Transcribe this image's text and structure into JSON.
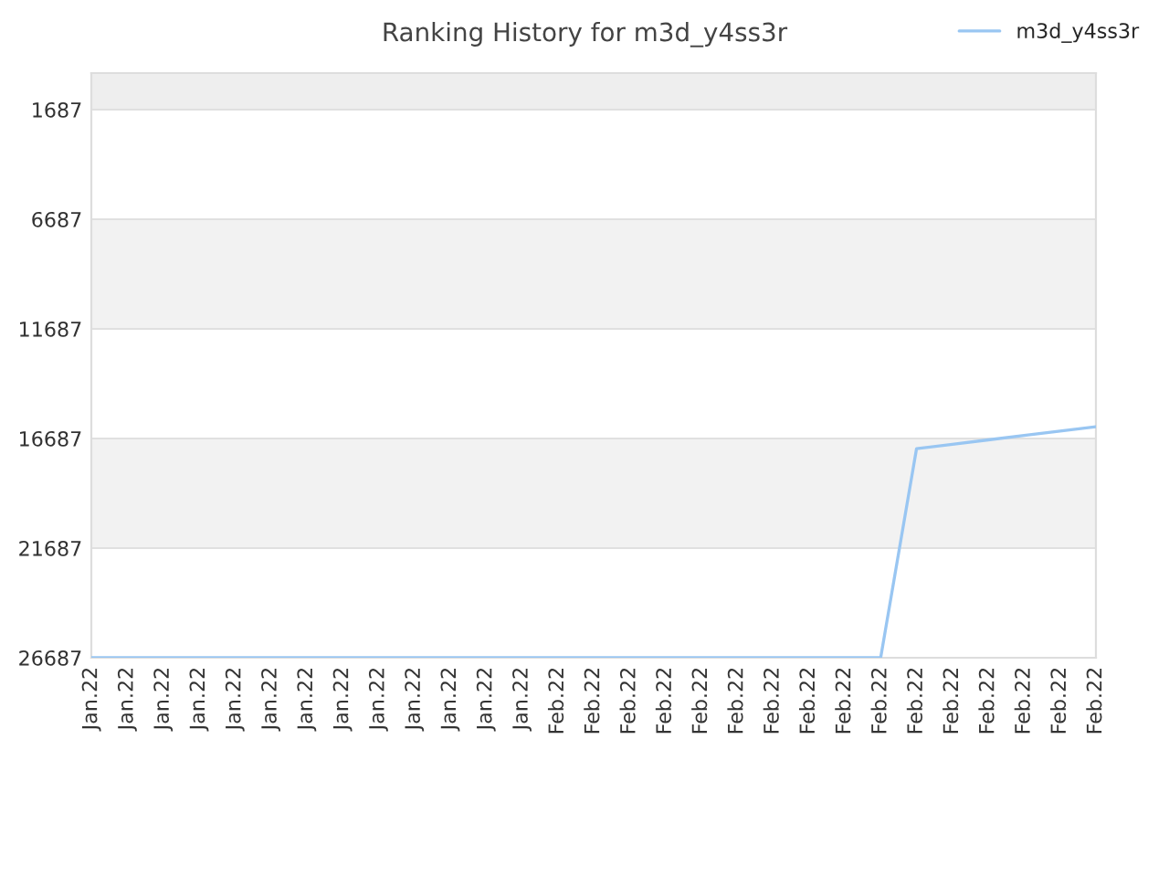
{
  "chart_data": {
    "type": "line",
    "title": "Ranking History for m3d_y4ss3r",
    "categories": [
      "Jan.22",
      "Jan.22",
      "Jan.22",
      "Jan.22",
      "Jan.22",
      "Jan.22",
      "Jan.22",
      "Jan.22",
      "Jan.22",
      "Jan.22",
      "Jan.22",
      "Jan.22",
      "Jan.22",
      "Feb.22",
      "Feb.22",
      "Feb.22",
      "Feb.22",
      "Feb.22",
      "Feb.22",
      "Feb.22",
      "Feb.22",
      "Feb.22",
      "Feb.22",
      "Feb.22",
      "Feb.22",
      "Feb.22",
      "Feb.22",
      "Feb.22",
      "Feb.22"
    ],
    "series": [
      {
        "name": "m3d_y4ss3r",
        "color": "#99c6f2",
        "values": [
          26687,
          26687,
          26687,
          26687,
          26687,
          26687,
          26687,
          26687,
          26687,
          26687,
          26687,
          26687,
          26687,
          26687,
          26687,
          26687,
          26687,
          26687,
          26687,
          26687,
          26687,
          26687,
          26687,
          17150,
          16950,
          16750,
          16550,
          16350,
          16150
        ]
      }
    ],
    "ylim": [
      26687,
      20
    ],
    "yticks": [
      1687,
      6687,
      11687,
      16687,
      21687,
      26687
    ],
    "bands": [
      {
        "axis": "y",
        "from": 20,
        "to": 1687,
        "color": "#eeeeee"
      },
      {
        "axis": "y",
        "from": 6687,
        "to": 11687,
        "color": "#f2f2f2"
      },
      {
        "axis": "y",
        "from": 16687,
        "to": 21687,
        "color": "#f2f2f2"
      }
    ],
    "grid": "y",
    "legend": "top right",
    "marker": "none",
    "line_style": "solid"
  }
}
